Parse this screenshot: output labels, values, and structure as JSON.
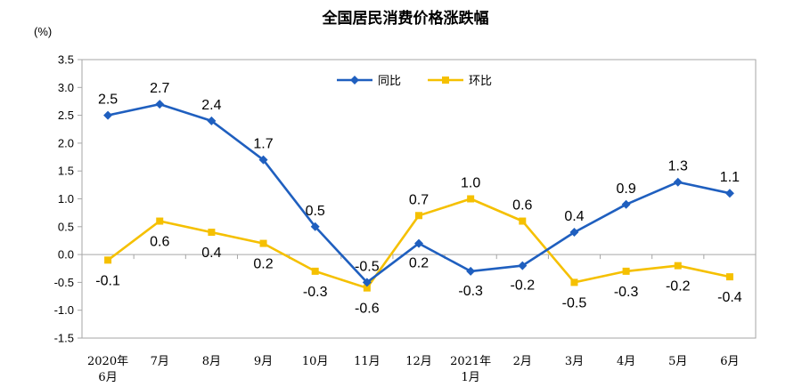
{
  "chart_data": {
    "type": "line",
    "title": "全国居民消费价格涨跌幅",
    "ylabel": "(%)",
    "ylim": [
      -1.5,
      3.5
    ],
    "yticks": [
      "3.5",
      "3.0",
      "2.5",
      "2.0",
      "1.5",
      "1.0",
      "0.5",
      "0.0",
      "-0.5",
      "-1.0",
      "-1.5"
    ],
    "ytick_values": [
      3.5,
      3.0,
      2.5,
      2.0,
      1.5,
      1.0,
      0.5,
      0.0,
      -0.5,
      -1.0,
      -1.5
    ],
    "categories": [
      [
        "2020年",
        "6月"
      ],
      [
        "7月"
      ],
      [
        "8月"
      ],
      [
        "9月"
      ],
      [
        "10月"
      ],
      [
        "11月"
      ],
      [
        "12月"
      ],
      [
        "2021年",
        "1月"
      ],
      [
        "2月"
      ],
      [
        "3月"
      ],
      [
        "4月"
      ],
      [
        "5月"
      ],
      [
        "6月"
      ]
    ],
    "legend_position": "top-center",
    "grid": false,
    "series": [
      {
        "name": "同比",
        "color": "#1F5FBF",
        "marker": "diamond",
        "values": [
          2.5,
          2.7,
          2.4,
          1.7,
          0.5,
          -0.5,
          0.2,
          -0.3,
          -0.2,
          0.4,
          0.9,
          1.3,
          1.1
        ],
        "labels": [
          "2.5",
          "2.7",
          "2.4",
          "1.7",
          "0.5",
          "-0.5",
          "0.2",
          "-0.3",
          "-0.2",
          "0.4",
          "0.9",
          "1.3",
          "1.1"
        ]
      },
      {
        "name": "环比",
        "color": "#F5C000",
        "marker": "square",
        "values": [
          -0.1,
          0.6,
          0.4,
          0.2,
          -0.3,
          -0.6,
          0.7,
          1.0,
          0.6,
          -0.5,
          -0.3,
          -0.2,
          -0.4
        ],
        "labels": [
          "-0.1",
          "0.6",
          "0.4",
          "0.2",
          "-0.3",
          "-0.6",
          "0.7",
          "1.0",
          "0.6",
          "-0.5",
          "-0.3",
          "-0.2",
          "-0.4"
        ]
      }
    ]
  }
}
